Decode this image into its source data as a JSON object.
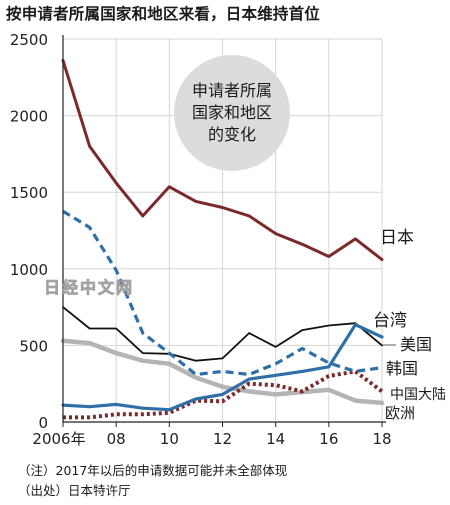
{
  "title": "按申请者所属国家和地区来看，日本维持首位",
  "bubble": [
    "申请者所属",
    "国家和地区",
    "的变化"
  ],
  "watermark": "日经中文网",
  "notes": [
    "（注）2017年以后的申请数据可能并未全部体现",
    "（出处）日本特许厅"
  ],
  "colors": {
    "japan": "#7a2a2a",
    "taiwan": "#111111",
    "usa": "#2f6fa8",
    "korea": "#2f6fa8",
    "china": "#7a2a2a",
    "europe": "#b4b4b4",
    "grid": "#d6d6d6",
    "bubble": "#dcdcdc"
  },
  "chart_data": {
    "type": "line",
    "title": "按申请者所属国家和地区来看，日本维持首位",
    "xlabel": "",
    "ylabel": "",
    "xlim": [
      2006,
      2018
    ],
    "ylim": [
      0,
      2500
    ],
    "x": [
      2006,
      2007,
      2008,
      2009,
      2010,
      2011,
      2012,
      2013,
      2014,
      2015,
      2016,
      2017,
      2018
    ],
    "x_tick_labels": [
      "2006年",
      "08",
      "10",
      "12",
      "14",
      "16",
      "18"
    ],
    "y_ticks": [
      0,
      500,
      1000,
      1500,
      2000,
      2500
    ],
    "grid": true,
    "series": [
      {
        "name": "日本",
        "style": "solid",
        "values": [
          2360,
          1800,
          1560,
          1345,
          1535,
          1440,
          1400,
          1345,
          1230,
          1160,
          1080,
          1195,
          1060
        ]
      },
      {
        "name": "台湾",
        "style": "solid",
        "values": [
          750,
          610,
          610,
          450,
          445,
          400,
          415,
          580,
          490,
          600,
          630,
          645,
          500
        ]
      },
      {
        "name": "美国",
        "style": "solid",
        "values": [
          110,
          100,
          115,
          90,
          80,
          150,
          180,
          280,
          305,
          330,
          360,
          635,
          555
        ]
      },
      {
        "name": "韩国",
        "style": "dashed",
        "values": [
          1375,
          1270,
          990,
          580,
          450,
          310,
          330,
          310,
          380,
          480,
          385,
          330,
          355
        ]
      },
      {
        "name": "中国大陆",
        "style": "dotted",
        "values": [
          30,
          30,
          50,
          50,
          60,
          140,
          135,
          250,
          240,
          200,
          300,
          330,
          200
        ]
      },
      {
        "name": "欧洲",
        "style": "solid",
        "values": [
          530,
          515,
          450,
          400,
          380,
          290,
          230,
          200,
          180,
          195,
          210,
          140,
          125
        ]
      }
    ]
  }
}
